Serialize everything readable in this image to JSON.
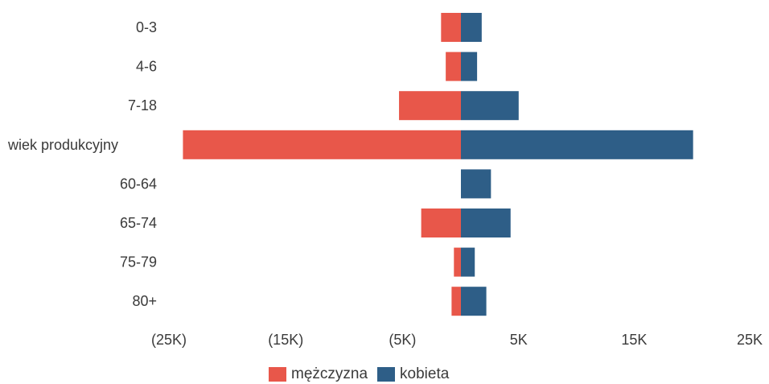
{
  "chart_data": {
    "type": "bar",
    "orientation": "horizontal",
    "stacked": "diverging",
    "categories": [
      "0-3",
      "4-6",
      "7-18",
      "wiek produkcyjny",
      "60-64",
      "65-74",
      "75-79",
      "80+"
    ],
    "series": [
      {
        "name": "mężczyzna",
        "color": "#e8574a",
        "values": [
          -1700,
          -1300,
          -5300,
          -23800,
          0,
          -3400,
          -600,
          -800
        ]
      },
      {
        "name": "kobieta",
        "color": "#2e5e87",
        "values": [
          1800,
          1400,
          5000,
          20100,
          2600,
          4300,
          1200,
          2200
        ]
      }
    ],
    "xlim": [
      -25000,
      25000
    ],
    "x_ticks": [
      -25000,
      -15000,
      -5000,
      5000,
      15000,
      25000
    ],
    "x_tick_labels": [
      "(25K)",
      "(15K)",
      "(5K)",
      "5K",
      "15K",
      "25K"
    ],
    "legend_position": "bottom",
    "grid": false
  }
}
